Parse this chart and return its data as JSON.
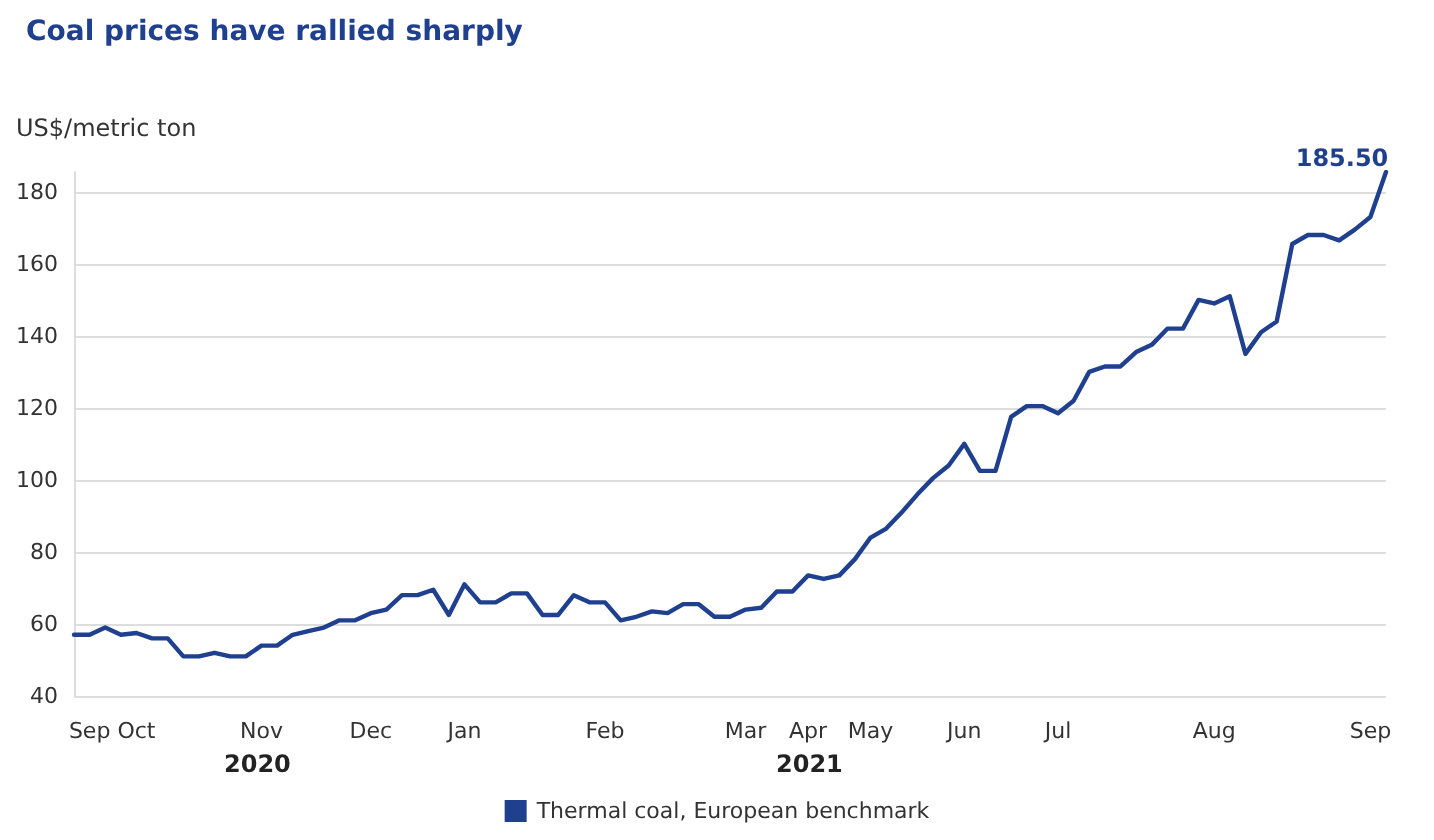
{
  "chart_data": {
    "type": "line",
    "title": "Coal prices have rallied sharply",
    "ylabel": "US$/metric ton",
    "annotations": [
      "2020",
      "2021"
    ],
    "categories": [
      null,
      "Sep",
      null,
      null,
      "Oct",
      null,
      null,
      null,
      null,
      null,
      null,
      null,
      "Nov",
      null,
      null,
      null,
      null,
      null,
      null,
      "Dec",
      null,
      null,
      null,
      null,
      null,
      "Jan",
      null,
      null,
      null,
      null,
      null,
      null,
      null,
      null,
      "Feb",
      null,
      null,
      null,
      null,
      null,
      null,
      null,
      null,
      "Mar",
      null,
      null,
      null,
      "Apr",
      null,
      null,
      null,
      "May",
      null,
      null,
      null,
      null,
      null,
      "Jun",
      null,
      null,
      null,
      null,
      null,
      "Jul",
      null,
      null,
      null,
      null,
      null,
      null,
      null,
      null,
      null,
      "Aug",
      null,
      null,
      null,
      null,
      null,
      null,
      null,
      null,
      null,
      "Sep",
      null
    ],
    "series": [
      {
        "name": "Thermal coal, European benchmark",
        "color": "#1f3f8f",
        "values": [
          57,
          57,
          59,
          57,
          57.5,
          56,
          56,
          51,
          51,
          52,
          51,
          51,
          54,
          54,
          57,
          58,
          59,
          61,
          61,
          63,
          64,
          68,
          68,
          69.5,
          62.5,
          71,
          66,
          66,
          68.5,
          68.5,
          62.5,
          62.5,
          68,
          66,
          66,
          61,
          62,
          63.5,
          63,
          65.5,
          65.5,
          62,
          62,
          64,
          64.5,
          69,
          69,
          73.5,
          72.5,
          73.5,
          78,
          84,
          86.5,
          91,
          96,
          100.5,
          104,
          110,
          102.5,
          102.5,
          117.5,
          120.5,
          120.5,
          118.5,
          122,
          130,
          131.5,
          131.5,
          135.5,
          137.5,
          142,
          142,
          150,
          149,
          151,
          135,
          141,
          144,
          165.5,
          168,
          168,
          166.5,
          169.5,
          173,
          185.5
        ],
        "value_labels": [
          null,
          null,
          null,
          null,
          null,
          null,
          null,
          null,
          null,
          null,
          null,
          null,
          null,
          null,
          null,
          null,
          null,
          null,
          null,
          null,
          null,
          null,
          null,
          null,
          null,
          null,
          null,
          null,
          null,
          null,
          null,
          null,
          null,
          null,
          null,
          null,
          null,
          null,
          null,
          null,
          null,
          null,
          null,
          null,
          null,
          null,
          null,
          null,
          null,
          null,
          null,
          null,
          null,
          null,
          null,
          null,
          null,
          null,
          null,
          null,
          null,
          null,
          null,
          null,
          null,
          null,
          null,
          null,
          null,
          null,
          null,
          null,
          null,
          null,
          null,
          null,
          null,
          null,
          null,
          null,
          null,
          null,
          null,
          null,
          "185.50"
        ]
      }
    ],
    "ylim": [
      40,
      185.5
    ],
    "yticks": [
      40,
      60,
      80,
      100,
      120,
      140,
      160,
      180
    ],
    "grid": "y",
    "legend": "bottom",
    "marker": "none",
    "line_style": "solid"
  }
}
